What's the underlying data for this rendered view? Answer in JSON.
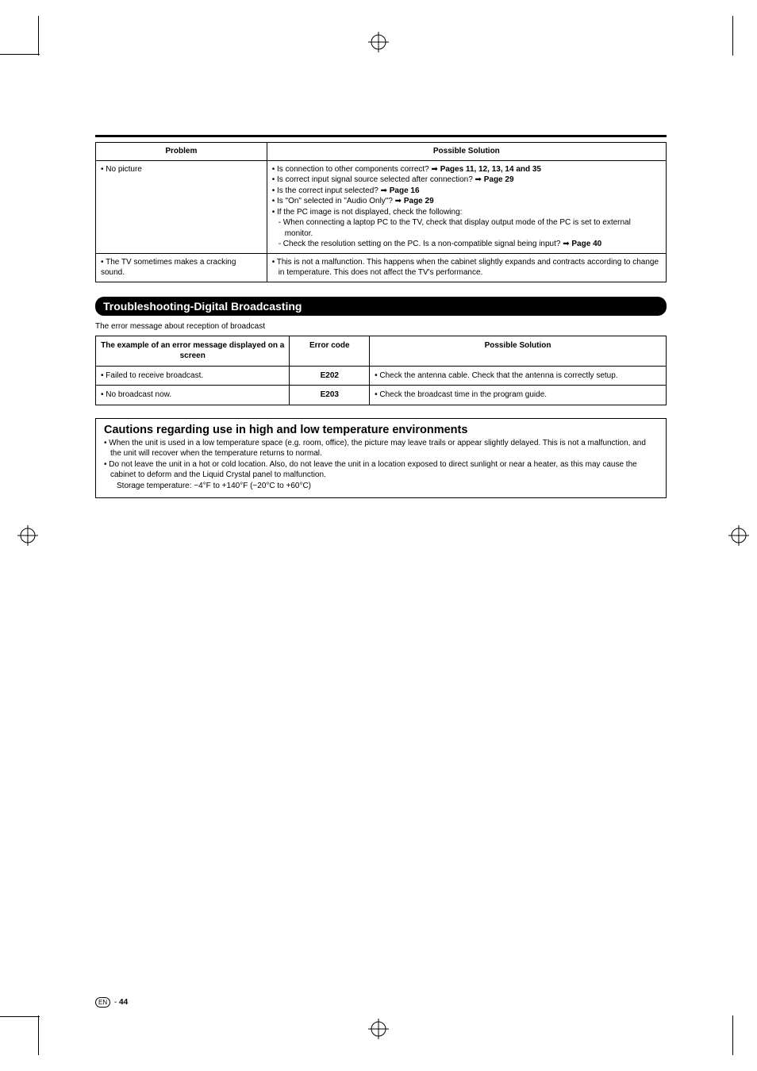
{
  "problem_table": {
    "headers": [
      "Problem",
      "Possible Solution"
    ],
    "rows": [
      {
        "problem": "• No picture",
        "solution_lines": [
          {
            "cls": "bul",
            "html": "• Is connection to other components correct? ➡ <b>Pages 11, 12, 13, 14 and 35</b>"
          },
          {
            "cls": "bul",
            "html": "• Is correct input signal source selected after connection? ➡ <b>Page 29</b>"
          },
          {
            "cls": "bul",
            "html": "• Is the correct input selected? ➡ <b>Page 16</b>"
          },
          {
            "cls": "bul",
            "html": "• Is \"On\" selected in \"Audio Only\"? ➡ <b>Page 29</b>"
          },
          {
            "cls": "bul",
            "html": "• If the PC image is not displayed, check the following:"
          },
          {
            "cls": "sub",
            "html": "- When connecting a laptop PC to the TV, check that display output mode of the PC is set to external monitor."
          },
          {
            "cls": "sub",
            "html": "- Check the resolution setting on the PC. Is a non-compatible signal being input? ➡ <b>Page 40</b>"
          }
        ]
      },
      {
        "problem": "• The TV sometimes makes a cracking sound.",
        "solution_lines": [
          {
            "cls": "bul",
            "html": "• This is not a malfunction. This happens when the cabinet slightly expands and contracts according to change in temperature. This does not affect the TV's performance."
          }
        ]
      }
    ]
  },
  "section_title": "Troubleshooting-Digital Broadcasting",
  "intro_line": "The error message about reception of broadcast",
  "error_table": {
    "headers": [
      "The example of an error message displayed on a screen",
      "Error code",
      "Possible Solution"
    ],
    "col_widths": [
      "34%",
      "14%",
      "52%"
    ],
    "rows": [
      {
        "msg": "• Failed to receive broadcast.",
        "code": "E202",
        "sol": "• Check the antenna cable. Check that the antenna is correctly setup."
      },
      {
        "msg": "• No broadcast now.",
        "code": "E203",
        "sol": "• Check the broadcast time in the program guide."
      }
    ]
  },
  "cautions": {
    "title": "Cautions regarding use in high and low temperature environments",
    "lines": [
      {
        "cls": "bul",
        "text": "• When the unit is used in a low temperature space (e.g. room, office), the picture may leave trails or appear slightly delayed. This is not a malfunction, and the unit will recover when the temperature returns to normal."
      },
      {
        "cls": "bul",
        "text": "• Do not leave the unit in a hot or cold location. Also, do not leave the unit in a location exposed to direct sunlight or near a heater, as this may cause the cabinet to deform and the Liquid Crystal panel to malfunction."
      },
      {
        "cls": "subplain",
        "text": "Storage temperature: −4°F to +140°F (−20°C to +60°C)"
      }
    ]
  },
  "page_number": "44",
  "page_lang": "EN"
}
